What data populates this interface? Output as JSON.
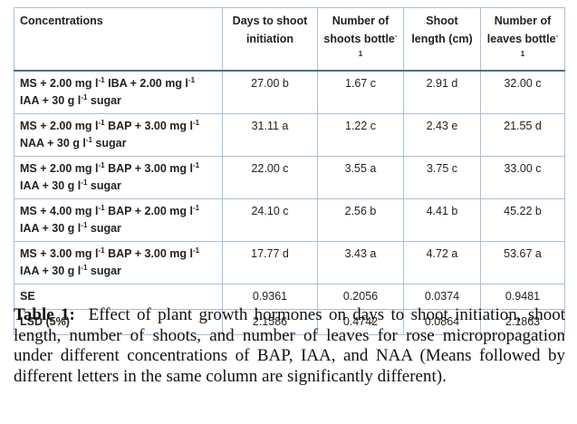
{
  "table": {
    "header": [
      [
        "Concentrations"
      ],
      [
        "Days to shoot initiation"
      ],
      [
        "Number of shoots bottle",
        {
          "sup": "-1"
        }
      ],
      [
        "Shoot length (cm)"
      ],
      [
        "Number of leaves bottle",
        {
          "sup": "-1"
        }
      ]
    ],
    "rows": [
      [
        [
          "MS + 2.00 mg l",
          {
            "sup": "-1"
          },
          " IBA + 2.00 mg l",
          {
            "sup": "-1"
          },
          " IAA + 30 g l",
          {
            "sup": "-1"
          },
          " sugar"
        ],
        "27.00 b",
        "1.67 c",
        "2.91 d",
        "32.00 c"
      ],
      [
        [
          "MS + 2.00 mg l",
          {
            "sup": "-1"
          },
          " BAP + 3.00 mg l",
          {
            "sup": "-1"
          },
          " NAA + 30 g l",
          {
            "sup": "-1"
          },
          " sugar"
        ],
        "31.11 a",
        "1.22 c",
        "2.43 e",
        "21.55 d"
      ],
      [
        [
          "MS + 2.00 mg l",
          {
            "sup": "-1"
          },
          " BAP + 3.00 mg l",
          {
            "sup": "-1"
          },
          " IAA + 30 g l",
          {
            "sup": "-1"
          },
          " sugar"
        ],
        "22.00 c",
        "3.55 a",
        "3.75 c",
        "33.00 c"
      ],
      [
        [
          "MS + 4.00 mg l",
          {
            "sup": "-1"
          },
          " BAP + 2.00 mg l",
          {
            "sup": "-1"
          },
          " IAA + 30 g l",
          {
            "sup": "-1"
          },
          " sugar"
        ],
        "24.10 c",
        "2.56 b",
        "4.41 b",
        "45.22 b"
      ],
      [
        [
          "MS + 3.00 mg l",
          {
            "sup": "-1"
          },
          " BAP + 3.00 mg l",
          {
            "sup": "-1"
          },
          " IAA + 30 g l",
          {
            "sup": "-1"
          },
          " sugar"
        ],
        "17.77 d",
        "3.43 a",
        "4.72 a",
        "53.67 a"
      ],
      [
        [
          "SE"
        ],
        "0.9361",
        "0.2056",
        "0.0374",
        "0.9481"
      ],
      [
        [
          "LSD (5%)"
        ],
        "2.1586",
        "0.4742",
        "0.0864",
        "2.1863"
      ]
    ]
  },
  "caption": {
    "label": "Table 1:",
    "text": "Effect of plant growth hormones on days to shoot initiation, shoot length, number of shoots, and number of leaves for rose micropropagation under different concentrations of BAP, IAA, and NAA (Means followed by different letters in the same column are significantly different)."
  }
}
